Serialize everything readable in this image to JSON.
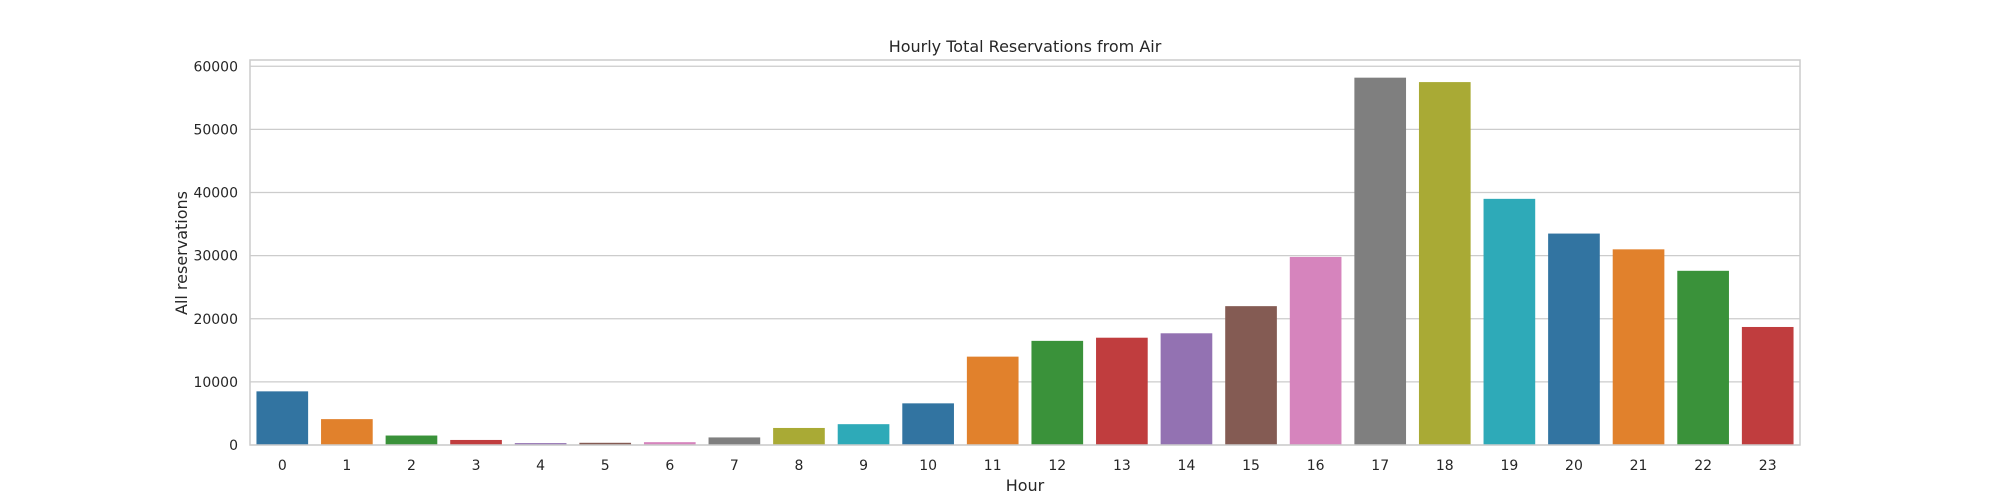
{
  "chart_data": {
    "type": "bar",
    "title": "Hourly Total Reservations from Air",
    "xlabel": "Hour",
    "ylabel": "All reservations",
    "categories": [
      "0",
      "1",
      "2",
      "3",
      "4",
      "5",
      "6",
      "7",
      "8",
      "9",
      "10",
      "11",
      "12",
      "13",
      "14",
      "15",
      "16",
      "17",
      "18",
      "19",
      "20",
      "21",
      "22",
      "23"
    ],
    "values": [
      8500,
      4100,
      1500,
      800,
      300,
      350,
      450,
      1200,
      2700,
      3300,
      6600,
      14000,
      16500,
      17000,
      17700,
      22000,
      29800,
      58200,
      57500,
      39000,
      33500,
      31000,
      27600,
      18700
    ],
    "ylim": [
      0,
      61000
    ],
    "yticks": [
      0,
      10000,
      20000,
      30000,
      40000,
      50000,
      60000
    ],
    "grid": true,
    "legend": "none",
    "colors": [
      "#3274a1",
      "#e1812c",
      "#3a923a",
      "#c03d3e",
      "#9372b2",
      "#845b53",
      "#d684bd",
      "#7f7f7f",
      "#a9aa35",
      "#2eaab8"
    ]
  }
}
